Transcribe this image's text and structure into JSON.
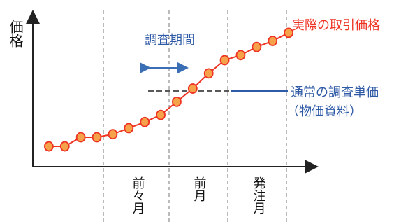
{
  "chart_data": {
    "type": "line",
    "ylabel": "価格",
    "series": [
      {
        "name": "実際の取引価格",
        "color": "#ee3322",
        "marker_fill": "#f5a24a",
        "points": [
          [
            1,
            0.5
          ],
          [
            2,
            0.5
          ],
          [
            3,
            1.4
          ],
          [
            4,
            1.4
          ],
          [
            5,
            1.7
          ],
          [
            6,
            2.3
          ],
          [
            7,
            2.9
          ],
          [
            8,
            3.6
          ],
          [
            9,
            4.9
          ],
          [
            10,
            6.2
          ],
          [
            11,
            7.7
          ],
          [
            12,
            9.0
          ],
          [
            13,
            9.5
          ],
          [
            14,
            10.3
          ],
          [
            15,
            10.9
          ],
          [
            16,
            11.7
          ]
        ]
      }
    ],
    "periods": [
      "前々月",
      "前月",
      "発注月"
    ],
    "annotations": {
      "survey_period": "調査期間",
      "normal_unit_price_line1": "通常の調査単価",
      "normal_unit_price_line2": "（物価資料）"
    },
    "grid": false
  }
}
